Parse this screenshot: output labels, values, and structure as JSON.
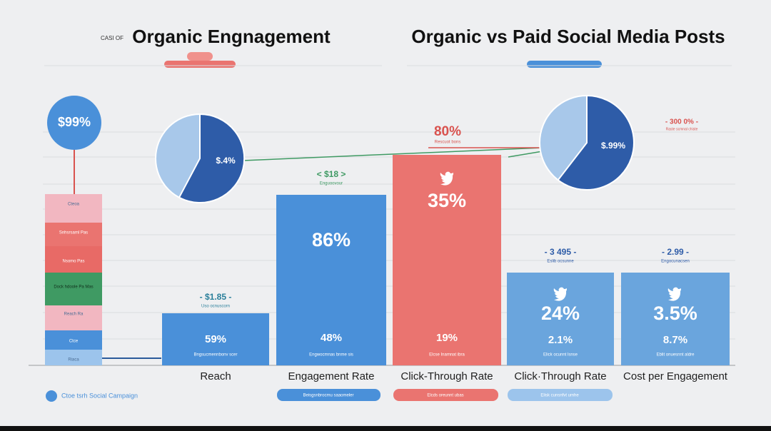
{
  "header": {
    "left_prefix": "CASI OF",
    "left_title": "Organic Engnagement",
    "right_title": "Organic vs Paid Social Media Posts"
  },
  "left_circle": "$99%",
  "stack": [
    "Cteoa",
    "Snhsrsaml Pas",
    "Nsomo Pas",
    "Dock hdoole Pa Mas",
    "Reach Ra",
    "Ctce",
    "Riaca"
  ],
  "pies": [
    {
      "label": "$.4%"
    },
    {
      "label": "$.99%"
    }
  ],
  "callouts": {
    "center_value": "80%",
    "center_caption": "Rescuot bons",
    "right_value": "- 300 0% -",
    "right_caption": "Raste scmnal chiste"
  },
  "bars": [
    {
      "above_value": "- $1.85 -",
      "above_caption": "Uso ocnuscorn",
      "main": "",
      "secondary": "59%",
      "caption": "Bngsucmennbonv scer",
      "category": "Reach"
    },
    {
      "above_value": "< $18 >",
      "above_caption": "Enguoovour",
      "main": "86%",
      "secondary": "48%",
      "caption": "Engwocmnas bnme sis",
      "category": "Engagement Rate"
    },
    {
      "above_value": "",
      "above_caption": "",
      "main": "35%",
      "secondary": "19%",
      "caption": "Elcse Inamnat ibra",
      "category": "Click-Through Rate"
    },
    {
      "above_value": "- 3 495 -",
      "above_caption": "Eslib ocsunne",
      "main": "24%",
      "secondary": "2.1%",
      "caption": "Elick ocunnt lsnse",
      "category": "Click·Through Rate"
    },
    {
      "above_value": "- 2.99 -",
      "above_caption": "Engocunacsen",
      "main": "3.5%",
      "secondary": "8.7%",
      "caption": "Eblit onuesnnt aldre",
      "category": "Cost per Engagement"
    }
  ],
  "pills": [
    "Beisgsnbrocmu saaomeler",
    "Elcds oreunnt ubas",
    "Elisk cunsnfvt umhe"
  ],
  "legend": "Ctoe tsrh Social Campaign"
}
